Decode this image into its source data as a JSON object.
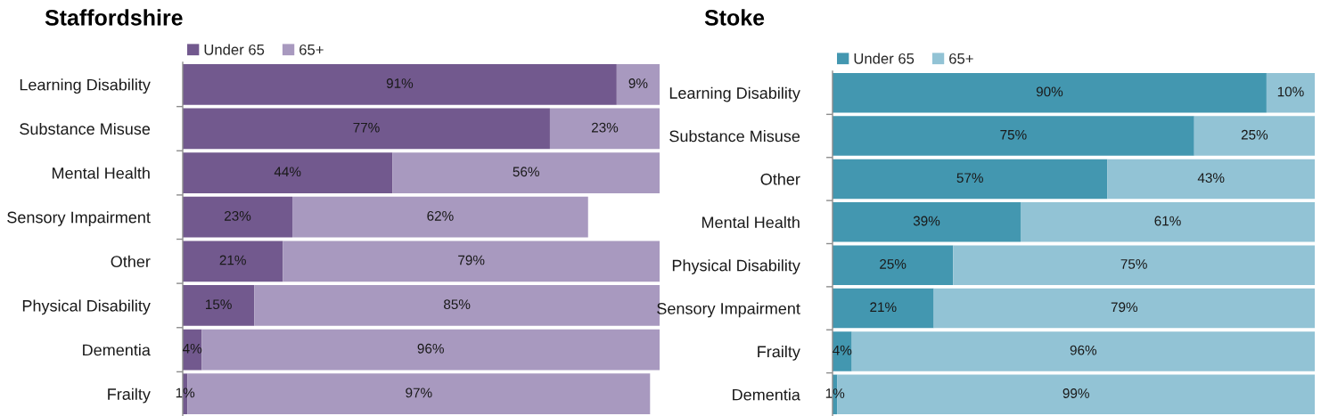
{
  "chart_data": [
    {
      "type": "bar",
      "orientation": "horizontal",
      "stacked": true,
      "title": "Staffordshire",
      "categories": [
        "Learning Disability",
        "Substance Misuse",
        "Mental Health",
        "Sensory Impairment",
        "Other",
        "Physical Disability",
        "Dementia",
        "Frailty"
      ],
      "series": [
        {
          "name": "Under 65",
          "color": "#72598e",
          "values": [
            91,
            77,
            44,
            23,
            21,
            15,
            4,
            1
          ],
          "value_labels": [
            "91%",
            "77%",
            "44%",
            "23%",
            "21%",
            "15%",
            "4%",
            "1%"
          ]
        },
        {
          "name": "65+",
          "color": "#a899bf",
          "values": [
            9,
            23,
            56,
            62,
            79,
            85,
            96,
            97
          ],
          "value_labels": [
            "9%",
            "23%",
            "56%",
            "62%",
            "79%",
            "85%",
            "96%",
            "97%"
          ]
        }
      ],
      "xlim": [
        0,
        100
      ],
      "tick_labels": "y",
      "legend": "top left"
    },
    {
      "type": "bar",
      "orientation": "horizontal",
      "stacked": true,
      "title": "Stoke",
      "categories": [
        "Learning Disability",
        "Substance Misuse",
        "Other",
        "Mental Health",
        "Physical Disability",
        "Sensory Impairment",
        "Frailty",
        "Dementia"
      ],
      "series": [
        {
          "name": "Under 65",
          "color": "#4397b0",
          "values": [
            90,
            75,
            57,
            39,
            25,
            21,
            4,
            1
          ],
          "value_labels": [
            "90%",
            "75%",
            "57%",
            "39%",
            "25%",
            "21%",
            "4%",
            "1%"
          ]
        },
        {
          "name": "65+",
          "color": "#92c3d5",
          "values": [
            10,
            25,
            43,
            61,
            75,
            79,
            96,
            99
          ],
          "value_labels": [
            "10%",
            "25%",
            "43%",
            "61%",
            "75%",
            "79%",
            "96%",
            "99%"
          ]
        }
      ],
      "xlim": [
        0,
        100
      ],
      "tick_labels": "y",
      "legend": "top left"
    }
  ]
}
